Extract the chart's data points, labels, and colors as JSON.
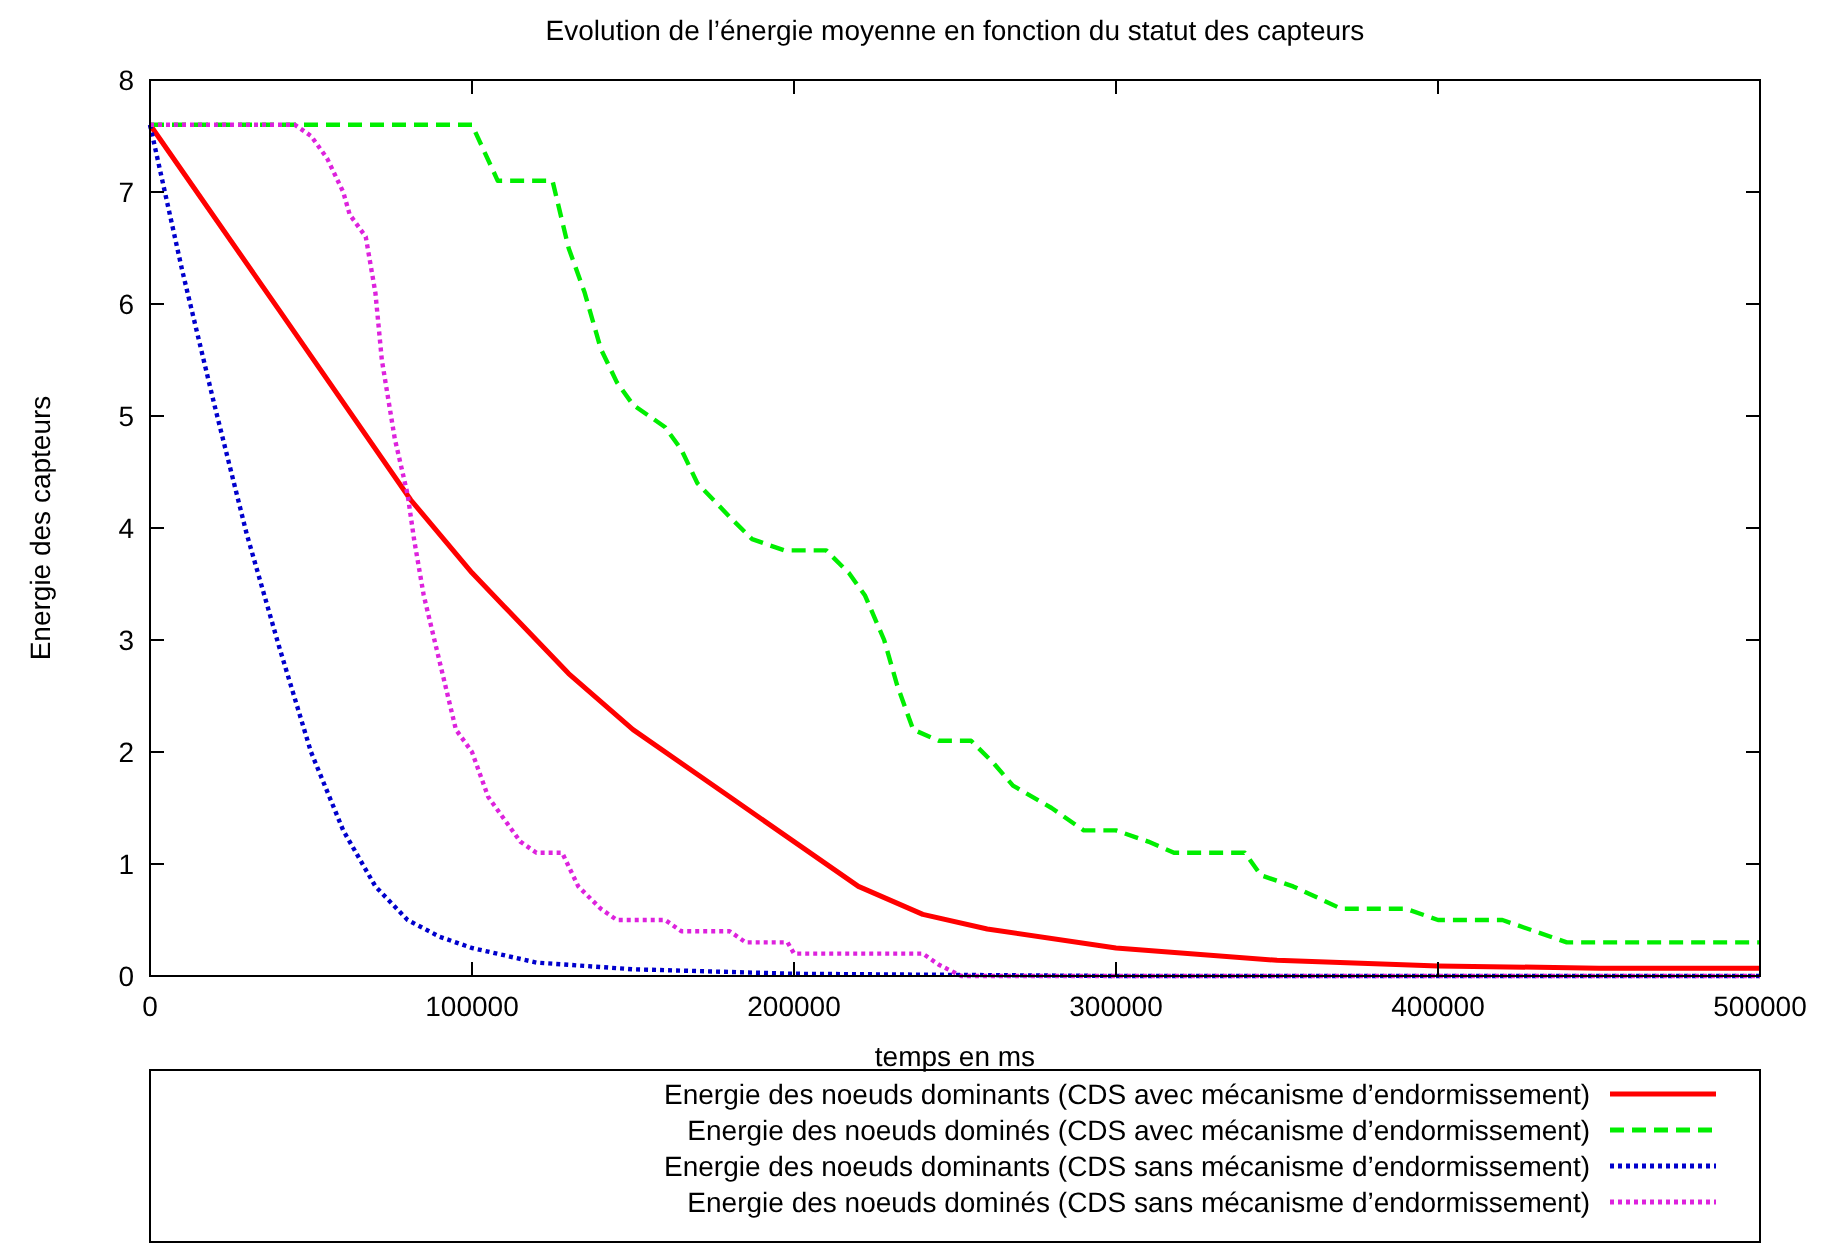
{
  "chart_data": {
    "type": "line",
    "title": "Evolution de l’énergie moyenne en fonction du statut des capteurs",
    "xlabel": "temps en ms",
    "ylabel": "Energie des capteurs",
    "xlim": [
      0,
      500000
    ],
    "xticks": [
      0,
      100000,
      200000,
      300000,
      400000,
      500000
    ],
    "ylim": [
      0,
      8
    ],
    "yticks": [
      0,
      1,
      2,
      3,
      4,
      5,
      6,
      7,
      8
    ],
    "grid": false,
    "legend": "bottom",
    "marker": "none",
    "series": [
      {
        "name": "Energie des noeuds dominants (CDS avec mécanisme d’endormissement)",
        "color": "#ff0000",
        "line_style": "solid",
        "x": [
          0,
          40000,
          81000,
          100000,
          110000,
          130000,
          150000,
          180000,
          200000,
          220000,
          240000,
          260000,
          300000,
          350000,
          400000,
          450000,
          500000
        ],
        "values": [
          7.6,
          5.95,
          4.25,
          3.6,
          3.3,
          2.7,
          2.2,
          1.6,
          1.2,
          0.8,
          0.55,
          0.42,
          0.25,
          0.14,
          0.09,
          0.07,
          0.07
        ]
      },
      {
        "name": "Energie des noeuds dominés (CDS avec mécanisme d’endormissement)",
        "color": "#00ee00",
        "line_style": "dashed",
        "x": [
          0,
          100000,
          108000,
          125000,
          130000,
          135000,
          140000,
          145000,
          150000,
          160000,
          165000,
          170000,
          180000,
          187000,
          197000,
          210000,
          217000,
          222000,
          228000,
          232000,
          237000,
          245000,
          255000,
          262000,
          268000,
          280000,
          290000,
          300000,
          310000,
          318000,
          340000,
          345000,
          355000,
          370000,
          390000,
          400000,
          420000,
          430000,
          440000,
          500000
        ],
        "values": [
          7.6,
          7.6,
          7.1,
          7.1,
          6.5,
          6.1,
          5.6,
          5.3,
          5.1,
          4.9,
          4.7,
          4.4,
          4.1,
          3.9,
          3.8,
          3.8,
          3.6,
          3.4,
          3.0,
          2.6,
          2.2,
          2.1,
          2.1,
          1.9,
          1.7,
          1.5,
          1.3,
          1.3,
          1.2,
          1.1,
          1.1,
          0.9,
          0.8,
          0.6,
          0.6,
          0.5,
          0.5,
          0.4,
          0.3,
          0.3
        ]
      },
      {
        "name": "Energie des noeuds dominants (CDS sans mécanisme d’endormissement)",
        "color": "#0000cc",
        "line_style": "dotted",
        "x": [
          0,
          10000,
          20000,
          30000,
          40000,
          50000,
          60000,
          70000,
          80000,
          90000,
          100000,
          120000,
          150000,
          200000,
          250000,
          300000,
          500000
        ],
        "values": [
          7.6,
          6.3,
          5.1,
          3.95,
          2.95,
          2.0,
          1.3,
          0.8,
          0.5,
          0.35,
          0.25,
          0.12,
          0.06,
          0.02,
          0.01,
          0,
          0
        ]
      },
      {
        "name": "Energie des noeuds dominés (CDS sans mécanisme d’endormissement)",
        "color": "#dd22dd",
        "line_style": "dotted",
        "x": [
          0,
          45000,
          50000,
          55000,
          60000,
          62000,
          67000,
          70000,
          72000,
          76000,
          80000,
          82000,
          85000,
          90000,
          95000,
          100000,
          105000,
          110000,
          115000,
          120000,
          128000,
          133000,
          140000,
          145000,
          160000,
          165000,
          180000,
          185000,
          198000,
          200000,
          240000,
          245000,
          252000,
          500000
        ],
        "values": [
          7.6,
          7.6,
          7.5,
          7.3,
          7.0,
          6.8,
          6.6,
          6.1,
          5.5,
          4.8,
          4.3,
          3.9,
          3.4,
          2.8,
          2.2,
          2.0,
          1.6,
          1.4,
          1.2,
          1.1,
          1.1,
          0.8,
          0.6,
          0.5,
          0.5,
          0.4,
          0.4,
          0.3,
          0.3,
          0.2,
          0.2,
          0.1,
          0,
          0
        ]
      }
    ]
  }
}
